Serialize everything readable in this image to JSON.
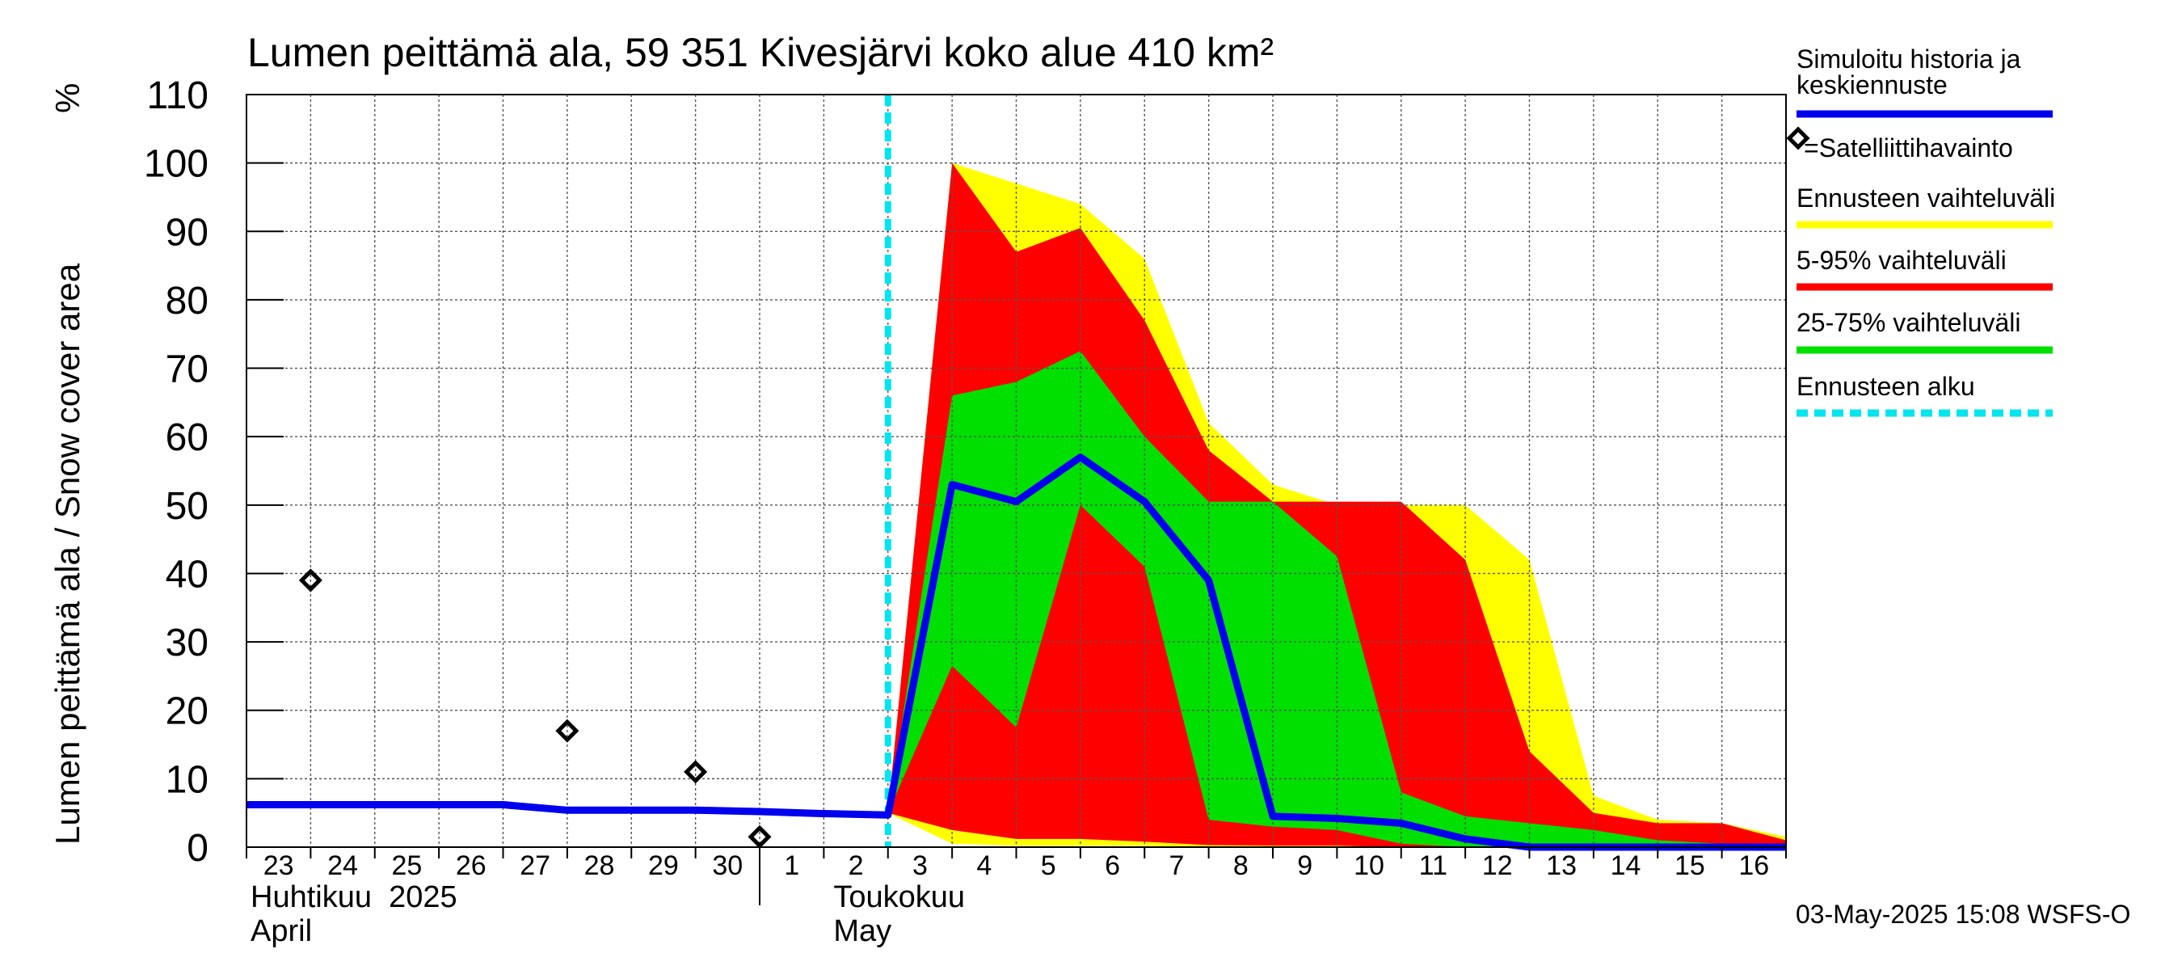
{
  "chart_data": {
    "type": "area",
    "title": "Lumen peittämä ala, 59 351 Kivesjärvi koko alue 410 km²",
    "ylabel": "Lumen peittämä ala / Snow cover area",
    "yunit": "%",
    "ylim": [
      0,
      110
    ],
    "yticks": [
      0,
      10,
      20,
      30,
      40,
      50,
      60,
      70,
      80,
      90,
      100,
      110
    ],
    "xlim": [
      0,
      24
    ],
    "grid": true,
    "x_day_labels": [
      "23",
      "24",
      "25",
      "26",
      "27",
      "28",
      "29",
      "30",
      "1",
      "2",
      "3",
      "4",
      "5",
      "6",
      "7",
      "8",
      "9",
      "10",
      "11",
      "12",
      "13",
      "14",
      "15",
      "16"
    ],
    "month_labels": [
      {
        "fi": "Huhtikuu  2025",
        "en": "April"
      },
      {
        "fi": "Toukokuu",
        "en": "May"
      }
    ],
    "forecast_start_x": 10,
    "forecast_x": [
      10,
      11,
      12,
      13,
      14,
      15,
      16,
      17,
      18,
      19,
      20,
      21,
      22,
      23,
      24
    ],
    "series": [
      {
        "name": "Ennusteen vaihteluväli",
        "color": "#ffff00",
        "upper": [
          5,
          100,
          97,
          94,
          86,
          62,
          53,
          50,
          50,
          50,
          42,
          7.5,
          4,
          3.5,
          1.5
        ],
        "lower": [
          5,
          0.5,
          0.2,
          0.2,
          0.2,
          0,
          0,
          0,
          0,
          0,
          0,
          0,
          0,
          0,
          0
        ]
      },
      {
        "name": "5-95% vaihteluväli",
        "color": "#ff0000",
        "upper": [
          5,
          100,
          87,
          90.5,
          77,
          58,
          50.5,
          50.5,
          50.5,
          42,
          14,
          5,
          3.5,
          3.5,
          1
        ],
        "lower": [
          5,
          2.5,
          1.2,
          1.2,
          0.8,
          0.3,
          0.2,
          0.2,
          0,
          0,
          0,
          0,
          0,
          0,
          0
        ]
      },
      {
        "name": "25-75% vaihteluväli",
        "color": "#00e000",
        "upper": [
          5,
          66,
          68,
          72.5,
          60,
          50.5,
          50.5,
          42.5,
          8,
          4.5,
          3.5,
          2.5,
          1,
          0.5,
          0
        ],
        "lower": [
          5,
          26.5,
          17.5,
          50,
          41,
          4,
          3,
          2.5,
          0.5,
          0,
          0,
          0,
          0,
          0,
          0
        ]
      },
      {
        "name": "Simuloitu historia ja keskiennuste",
        "color": "#0000ee",
        "x": [
          0,
          1,
          2,
          3,
          4,
          5,
          6,
          7,
          8,
          9,
          10,
          11,
          12,
          13,
          14,
          15,
          16,
          17,
          18,
          19,
          20,
          21,
          22,
          23,
          24
        ],
        "values": [
          6.2,
          6.2,
          6.2,
          6.2,
          6.2,
          5.4,
          5.4,
          5.4,
          5.2,
          4.9,
          4.7,
          53,
          50.5,
          57,
          50.5,
          39,
          4.5,
          4.2,
          3.5,
          1.2,
          0,
          0,
          0,
          0,
          0
        ]
      },
      {
        "name": "=Satelliittihavainto",
        "x": [
          1,
          5,
          7,
          8
        ],
        "values": [
          39,
          17,
          11,
          1.5
        ]
      }
    ],
    "legend": {
      "position": "right",
      "items": [
        {
          "label": "Simuloitu historia ja keskiennuste",
          "color": "#0000ee",
          "style": "line"
        },
        {
          "label": "=Satelliittihavainto",
          "color": "#000000",
          "style": "diamond"
        },
        {
          "label": "Ennusteen vaihteluväli",
          "color": "#ffff00",
          "style": "line"
        },
        {
          "label": "5-95% vaihteluväli",
          "color": "#ff0000",
          "style": "line"
        },
        {
          "label": "25-75% vaihteluväli",
          "color": "#00e000",
          "style": "line"
        },
        {
          "label": "Ennusteen alku",
          "color": "#00e5ee",
          "style": "dashed"
        }
      ]
    },
    "forecast_start_color": "#00e5ee",
    "timestamp": "03-May-2025 15:08 WSFS-O"
  }
}
